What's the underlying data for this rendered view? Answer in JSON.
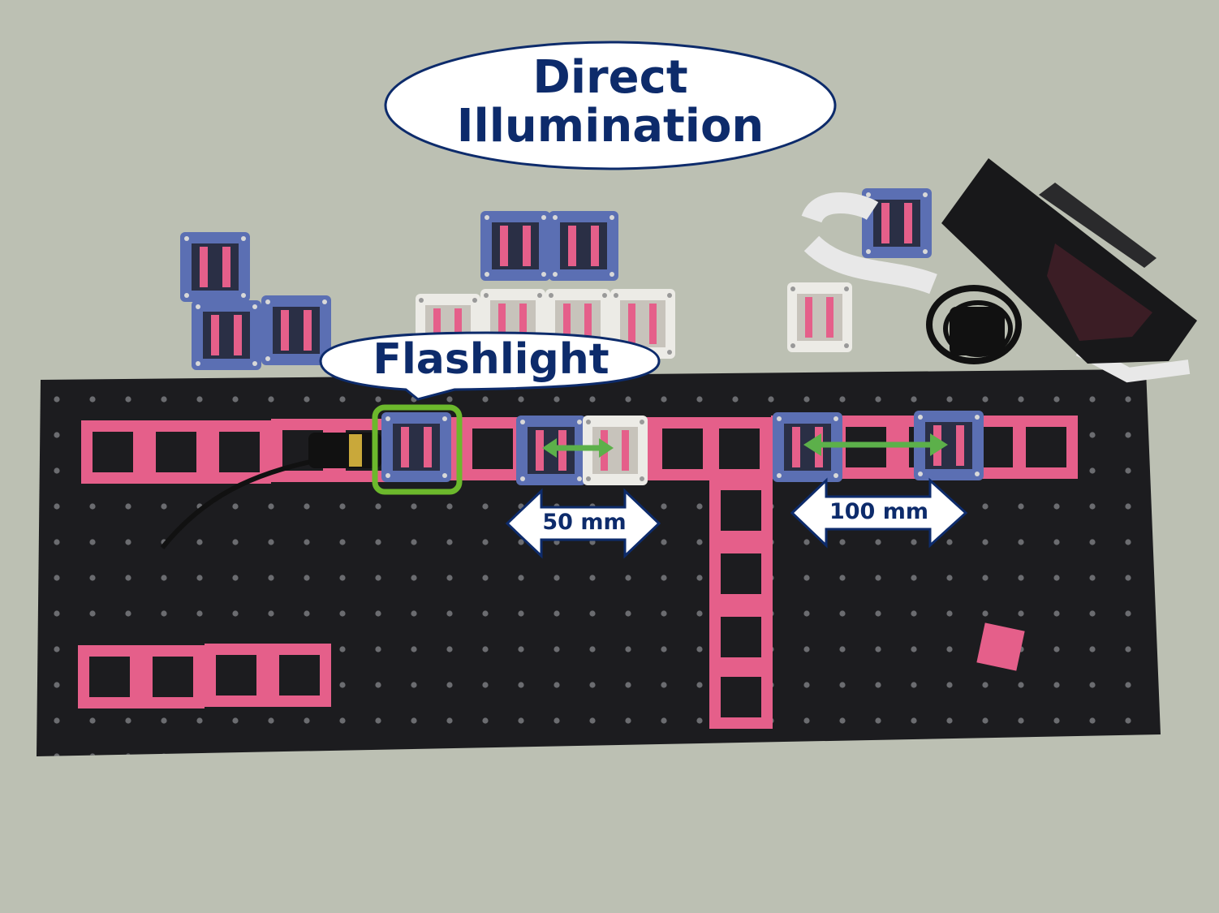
{
  "labels": {
    "direct_line1": "Direct",
    "direct_line2": "Illumination",
    "flashlight": "Flashlight",
    "distance_short": "50 mm",
    "distance_long": "100 mm"
  },
  "colors": {
    "table": "#b9bdb0",
    "board": "#1c1c1f",
    "rail": "#e55f8a",
    "cube_blue": "#5b6fb3",
    "cube_white": "#ecebe6",
    "label_text": "#0d2b6b",
    "highlight": "#6cb82c",
    "arrow_outline": "#0d2b6b",
    "double_arrow": "#5cb04a"
  }
}
